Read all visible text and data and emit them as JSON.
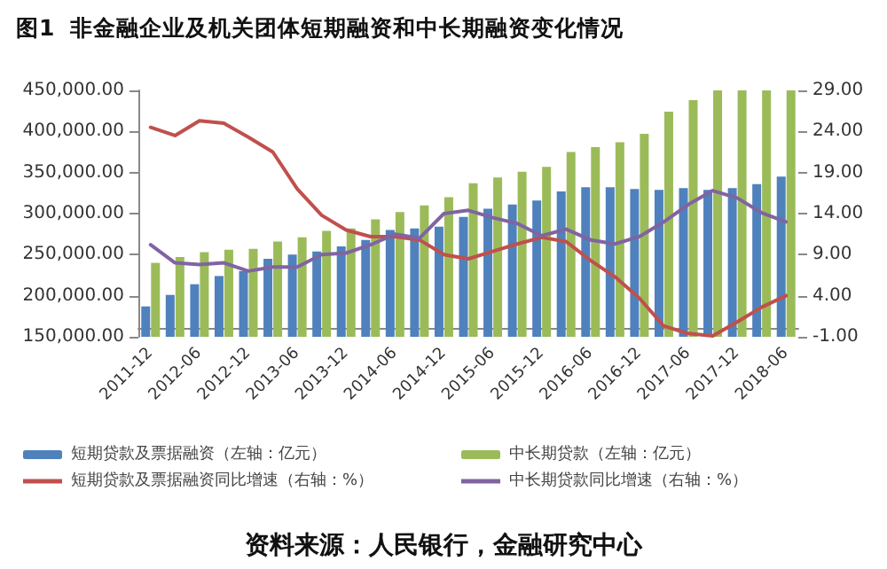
{
  "chart_data": {
    "type": "bar",
    "title": "图1  非金融企业及机关团体短期融资和中长期融资变化情况",
    "categories": [
      "2011-12",
      null,
      "2012-06",
      null,
      "2012-12",
      null,
      "2013-06",
      null,
      "2013-12",
      null,
      "2014-06",
      null,
      "2014-12",
      null,
      "2015-06",
      null,
      "2015-12",
      null,
      "2016-06",
      null,
      "2016-12",
      null,
      "2017-06",
      null,
      "2017-12",
      null,
      "2018-06"
    ],
    "series": [
      {
        "name": "短期贷款及票据融资（左轴：亿元）",
        "color": "#4f81bd",
        "values": [
          187000,
          201000,
          214000,
          224000,
          230000,
          245000,
          250000,
          254000,
          260000,
          268000,
          280000,
          282000,
          284000,
          296000,
          306000,
          311000,
          316000,
          327000,
          332000,
          332000,
          330000,
          329000,
          331000,
          329000,
          331000,
          336000,
          345000
        ]
      },
      {
        "name": "中长期贷款（左轴：亿元）",
        "color": "#9bbb59",
        "values": [
          240000,
          247000,
          253000,
          256000,
          257000,
          266000,
          271000,
          279000,
          282000,
          293000,
          302000,
          310000,
          320000,
          337000,
          344000,
          351000,
          357000,
          375000,
          381000,
          387000,
          397000,
          424000,
          438000,
          450000,
          450000,
          450000,
          450000
        ]
      },
      {
        "name": "短期贷款及票据融资同比增速（右轴：%）",
        "type": "line",
        "axis": "y2",
        "color": "#c0504d",
        "values": [
          24.5,
          23.5,
          25.3,
          25.0,
          23.3,
          21.5,
          17.0,
          13.8,
          12.0,
          11.2,
          11.2,
          10.8,
          9.0,
          8.5,
          9.4,
          10.3,
          11.1,
          10.6,
          8.3,
          6.3,
          3.7,
          0.3,
          -0.6,
          -0.9,
          0.8,
          2.6,
          4.0
        ]
      },
      {
        "name": "中长期贷款同比增速（右轴：%）",
        "type": "line",
        "axis": "y2",
        "color": "#8064a2",
        "values": [
          10.2,
          8.0,
          7.8,
          8.0,
          7.0,
          7.5,
          7.5,
          9.0,
          9.2,
          10.2,
          11.5,
          11.0,
          14.0,
          14.4,
          13.5,
          12.8,
          11.3,
          12.1,
          10.8,
          10.3,
          11.2,
          13.0,
          15.1,
          16.8,
          15.9,
          14.1,
          13.0
        ]
      }
    ],
    "ylim": [
      150000,
      450000
    ],
    "yticks": [
      {
        "value": 150000,
        "label": "150,000.00"
      },
      {
        "value": 200000,
        "label": "200,000.00"
      },
      {
        "value": 250000,
        "label": "250,000.00"
      },
      {
        "value": 300000,
        "label": "300,000.00"
      },
      {
        "value": 350000,
        "label": "350,000.00"
      },
      {
        "value": 400000,
        "label": "400,000.00"
      },
      {
        "value": 450000,
        "label": "450,000.00"
      }
    ],
    "y2lim": [
      -1,
      29
    ],
    "y2ticks": [
      {
        "value": -1,
        "label": "-1.00"
      },
      {
        "value": 4,
        "label": "4.00"
      },
      {
        "value": 9,
        "label": "9.00"
      },
      {
        "value": 14,
        "label": "14.00"
      },
      {
        "value": 19,
        "label": "19.00"
      },
      {
        "value": 24,
        "label": "24.00"
      },
      {
        "value": 29,
        "label": "29.00"
      }
    ],
    "legend": "bottom",
    "marker": "none",
    "line_style": "solid",
    "annotations": [
      "资料来源：人民银行，金融研究中心"
    ]
  }
}
